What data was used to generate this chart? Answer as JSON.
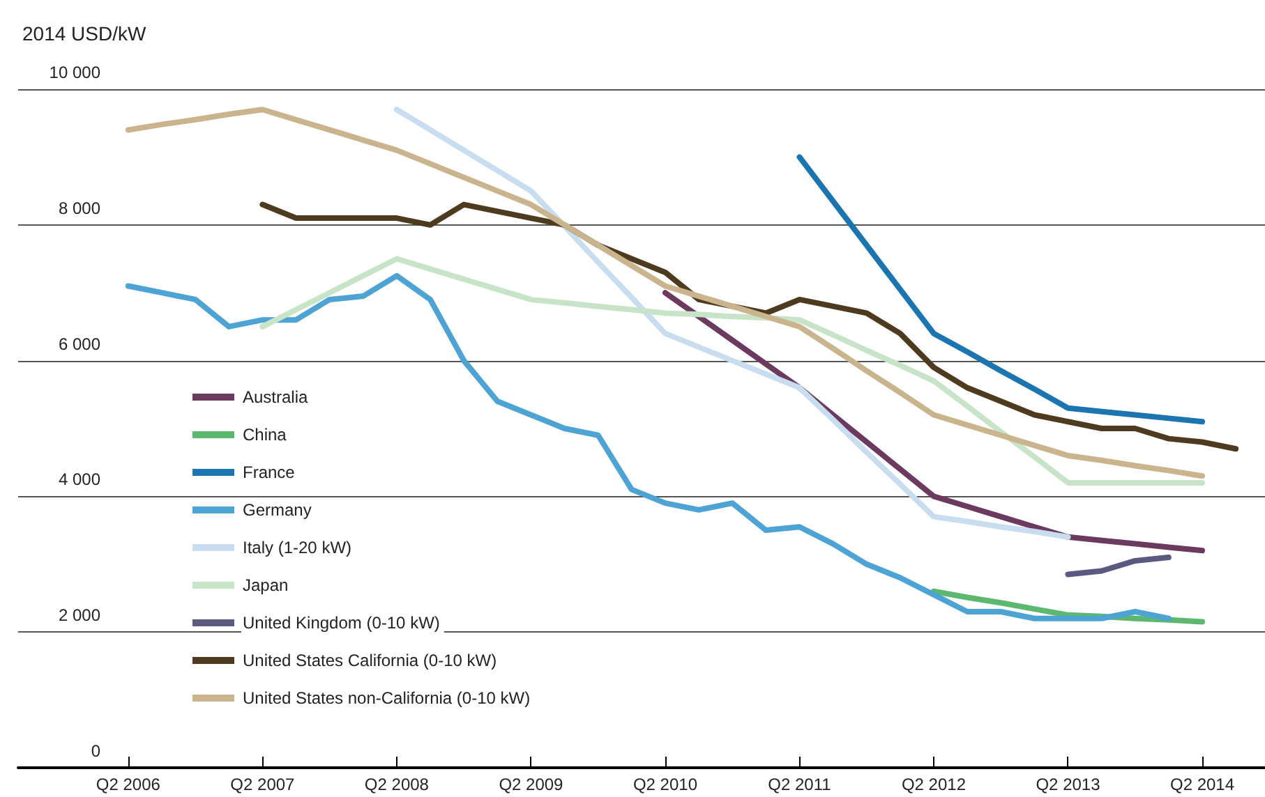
{
  "chart_data": {
    "type": "line",
    "ylabel": "2014 USD/kW",
    "categories": [
      "Q2 2006",
      null,
      null,
      null,
      "Q2 2007",
      null,
      null,
      null,
      "Q2 2008",
      null,
      null,
      null,
      "Q2 2009",
      null,
      null,
      null,
      "Q2 2010",
      null,
      null,
      null,
      "Q2 2011",
      null,
      null,
      null,
      "Q2 2012",
      null,
      null,
      null,
      "Q2 2013",
      null,
      null,
      null,
      "Q2 2014",
      null
    ],
    "ylim": [
      0,
      10000
    ],
    "yticks": [
      {
        "value": 0,
        "label": "0"
      },
      {
        "value": 2000,
        "label": "2 000"
      },
      {
        "value": 4000,
        "label": "4 000"
      },
      {
        "value": 6000,
        "label": "6 000"
      },
      {
        "value": 8000,
        "label": "8 000"
      },
      {
        "value": 10000,
        "label": "10 000"
      }
    ],
    "grid": "y",
    "legend": "bottom left",
    "marker": "none",
    "line_style": "solid",
    "series": [
      {
        "name": "Australia",
        "color": "#6b3a5e",
        "values": [
          null,
          null,
          null,
          null,
          null,
          null,
          null,
          null,
          null,
          null,
          null,
          null,
          null,
          null,
          null,
          null,
          7000,
          6650,
          6300,
          5950,
          5600,
          5200,
          4800,
          4400,
          4000,
          3850,
          3700,
          3550,
          3400,
          3350,
          3300,
          3250,
          3200,
          null
        ]
      },
      {
        "name": "China",
        "color": "#5cb86e",
        "values": [
          null,
          null,
          null,
          null,
          null,
          null,
          null,
          null,
          null,
          null,
          null,
          null,
          null,
          null,
          null,
          null,
          null,
          null,
          null,
          null,
          null,
          null,
          null,
          null,
          2600,
          2510,
          2430,
          2340,
          2250,
          2230,
          2200,
          2180,
          2150,
          null
        ]
      },
      {
        "name": "France",
        "color": "#1a75b0",
        "values": [
          null,
          null,
          null,
          null,
          null,
          null,
          null,
          null,
          null,
          null,
          null,
          null,
          null,
          null,
          null,
          null,
          null,
          null,
          null,
          null,
          9000,
          8350,
          7700,
          7050,
          6400,
          6130,
          5850,
          5580,
          5300,
          5250,
          5200,
          5150,
          5100,
          null
        ]
      },
      {
        "name": "Germany",
        "color": "#4ca3d4",
        "values": [
          7100,
          7000,
          6900,
          6500,
          6600,
          6600,
          6900,
          6950,
          7250,
          6900,
          6000,
          5400,
          5200,
          5000,
          4900,
          4100,
          3900,
          3800,
          3900,
          3500,
          3550,
          3300,
          3000,
          2800,
          2550,
          2300,
          2300,
          2200,
          2200,
          2200,
          2300,
          2200,
          null,
          null
        ]
      },
      {
        "name": "Italy (1-20 kW)",
        "color": "#c8ddf0",
        "values": [
          null,
          null,
          null,
          null,
          null,
          null,
          null,
          null,
          9700,
          9400,
          9100,
          8800,
          8500,
          7980,
          7450,
          6930,
          6400,
          6200,
          6000,
          5800,
          5600,
          5130,
          4650,
          4180,
          3700,
          3630,
          3550,
          3480,
          3400,
          null,
          null,
          null,
          null,
          null
        ]
      },
      {
        "name": "Japan",
        "color": "#c8e4c8",
        "values": [
          null,
          null,
          null,
          null,
          6500,
          6750,
          7000,
          7250,
          7500,
          7350,
          7200,
          7050,
          6900,
          6850,
          6800,
          6750,
          6700,
          6680,
          6650,
          6630,
          6600,
          6380,
          6150,
          5930,
          5700,
          5330,
          4950,
          4580,
          4200,
          4200,
          4200,
          4200,
          4200,
          null
        ]
      },
      {
        "name": "United Kingdom (0-10 kW)",
        "color": "#5a5a80",
        "values": [
          null,
          null,
          null,
          null,
          null,
          null,
          null,
          null,
          null,
          null,
          null,
          null,
          null,
          null,
          null,
          null,
          null,
          null,
          null,
          null,
          null,
          null,
          null,
          null,
          null,
          null,
          null,
          null,
          2850,
          2900,
          3050,
          3100,
          null,
          null
        ]
      },
      {
        "name": "United States California (0-10 kW)",
        "color": "#4e3b1f",
        "values": [
          null,
          null,
          null,
          null,
          8300,
          8100,
          8100,
          8100,
          8100,
          8000,
          8300,
          8200,
          8100,
          8000,
          7700,
          7500,
          7300,
          6900,
          6800,
          6700,
          6900,
          6800,
          6700,
          6400,
          5900,
          5600,
          5400,
          5200,
          5100,
          5000,
          5000,
          4850,
          4800,
          4700
        ]
      },
      {
        "name": "United States non-California (0-10 kW)",
        "color": "#c9b48e",
        "values": [
          9400,
          9480,
          9550,
          9630,
          9700,
          9550,
          9400,
          9250,
          9100,
          8900,
          8700,
          8500,
          8300,
          8000,
          7700,
          7400,
          7100,
          6950,
          6800,
          6650,
          6500,
          6180,
          5850,
          5530,
          5200,
          5050,
          4900,
          4750,
          4600,
          4530,
          4450,
          4380,
          4300,
          null
        ]
      }
    ]
  }
}
